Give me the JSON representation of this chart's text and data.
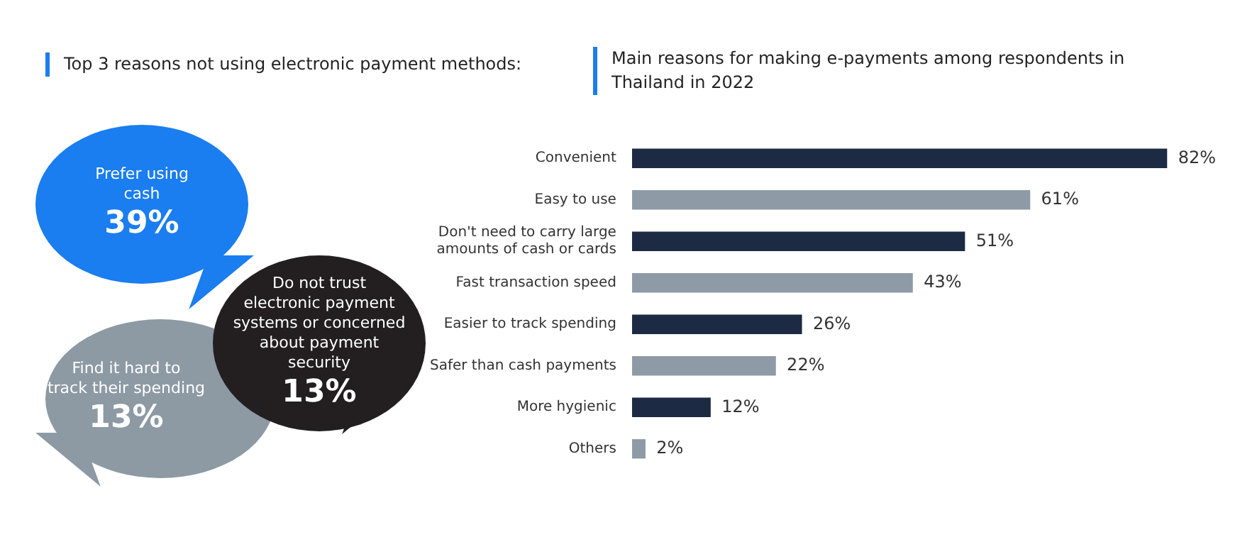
{
  "chart_data": [
    {
      "type": "other",
      "title": "Top 3 reasons not using electronic payment methods:",
      "categories": [
        "Prefer using cash",
        "Do not trust electronic payment systems or concerned about payment security",
        "Find it hard to track their spending"
      ],
      "values": [
        39,
        13,
        13
      ],
      "value_labels": [
        "39%",
        "13%",
        "13%"
      ],
      "colors": [
        "#1a7df0",
        "#231f20",
        "#8d9aa4"
      ]
    },
    {
      "type": "bar",
      "orientation": "horizontal",
      "title": "Main reasons for making e-payments among respondents in Thailand in 2022",
      "categories": [
        "Convenient",
        "Easy to use",
        "Don't need to carry large amounts of cash or cards",
        "Fast transaction speed",
        "Easier to track spending",
        "Safer than cash payments",
        "More hygienic",
        "Others"
      ],
      "values": [
        82,
        61,
        51,
        43,
        26,
        22,
        12,
        2
      ],
      "value_labels": [
        "82%",
        "61%",
        "51%",
        "43%",
        "26%",
        "22%",
        "12%",
        "2%"
      ],
      "colors": [
        "#1d2a44",
        "#8e9ba6",
        "#1d2a44",
        "#8e9ba6",
        "#1d2a44",
        "#8e9ba6",
        "#1d2a44",
        "#8e9ba6"
      ]
    }
  ]
}
